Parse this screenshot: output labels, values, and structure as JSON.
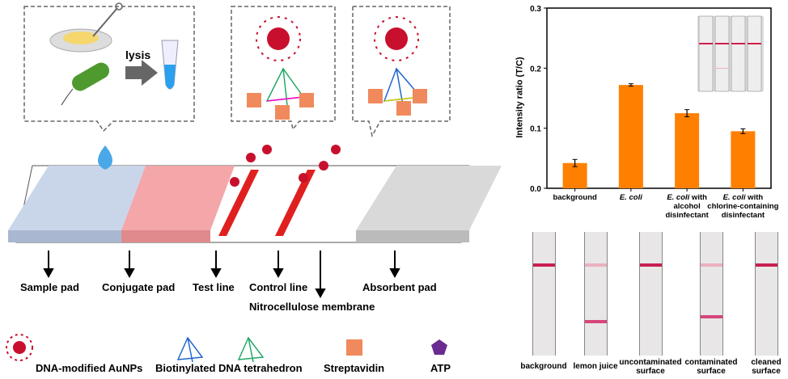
{
  "diagram": {
    "lysis_label": "lysis",
    "strip_labels": [
      "Sample pad",
      "Conjugate pad",
      "Test line",
      "Control line",
      "Nitrocellulose membrane",
      "Absorbent pad"
    ],
    "legend": [
      "DNA-modified AuNPs",
      "Biotinylated DNA tetrahedron",
      "Streptavidin",
      "ATP"
    ],
    "colors": {
      "aunp": "#c8102e",
      "streptavidin": "#f08a5d",
      "atp": "#6a2c91",
      "sample_pad": "#c9d6ea",
      "conjugate_pad": "#f4a6a8",
      "absorbent_pad": "#d9d9d9",
      "bacteria": "#4f9a2e"
    }
  },
  "chart_data": {
    "type": "bar",
    "categories": [
      "background",
      "E. coli",
      "E. coli with alcohol disinfectant",
      "E. coli with chlorine-containing disinfectant"
    ],
    "category_lines": [
      [
        "background"
      ],
      [
        "E. coli"
      ],
      [
        "E. coli with",
        "alcohol",
        "disinfectant"
      ],
      [
        "E. coli with",
        "chlorine-containing",
        "disinfectant"
      ]
    ],
    "values": [
      0.042,
      0.172,
      0.125,
      0.095
    ],
    "errors": [
      0.006,
      0.002,
      0.006,
      0.004
    ],
    "ylabel": "Intensity ratio (T/C)",
    "ylim": [
      0,
      0.3
    ],
    "yticks": [
      "0.0",
      "0.1",
      "0.2",
      "0.3"
    ],
    "bar_color": "#ff8000",
    "grid": false
  },
  "strips": {
    "labels": [
      [
        "background"
      ],
      [
        "lemon juice"
      ],
      [
        "uncontaminated",
        "surface"
      ],
      [
        "contaminated",
        "surface"
      ],
      [
        "cleaned",
        "surface"
      ]
    ],
    "control_line": [
      true,
      true,
      true,
      true,
      true
    ],
    "test_line": [
      false,
      true,
      false,
      true,
      false
    ]
  }
}
